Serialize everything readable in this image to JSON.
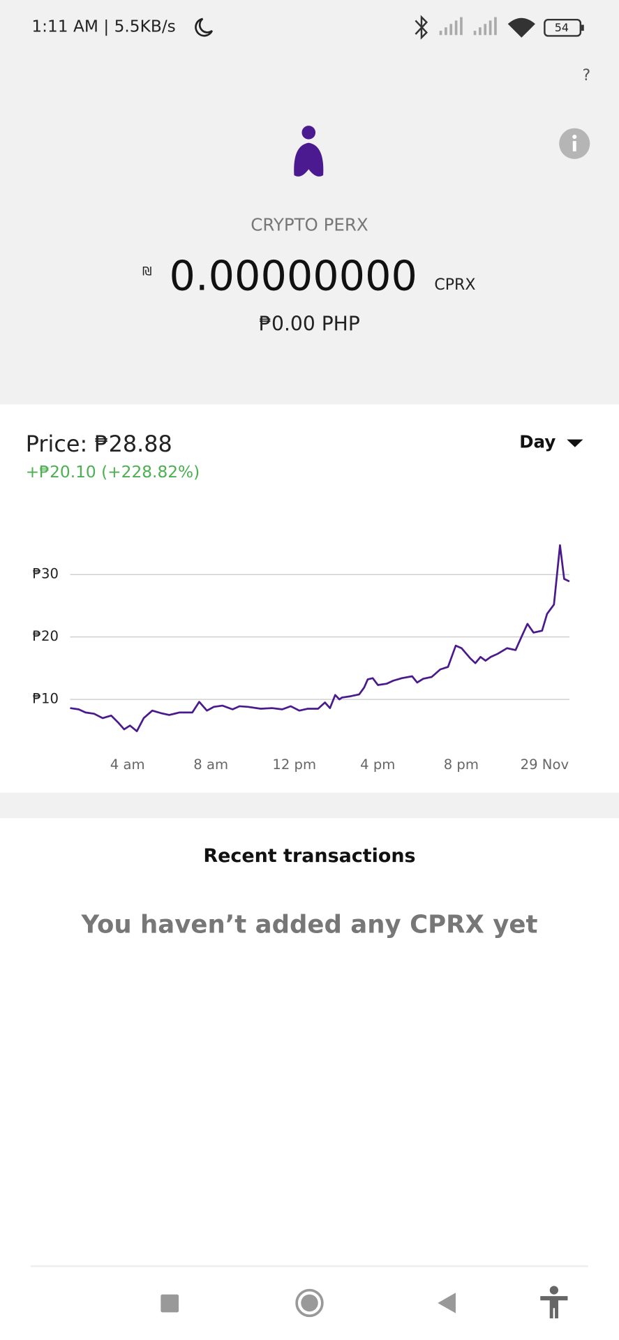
{
  "status_bar": {
    "time": "1:11 AM | 5.5KB/s",
    "battery": "54"
  },
  "header": {
    "help": "?",
    "name": "CRYPTO PERX",
    "currency_symbol": "₪",
    "balance": "0.00000000",
    "unit": "CPRX",
    "fiat": "₱0.00 PHP"
  },
  "price": {
    "label": "Price: ₱28.88",
    "change": "+₱20.10 (+228.82%)",
    "period": "Day"
  },
  "chart_data": {
    "type": "line",
    "color": "#4a1a8c",
    "grid": true,
    "x": [
      1.25,
      1.66,
      1.99,
      2.4,
      2.81,
      3.22,
      3.55,
      3.84,
      4.12,
      4.45,
      4.78,
      5.19,
      5.6,
      6.0,
      6.5,
      7.11,
      7.44,
      7.81,
      8.14,
      8.55,
      9.04,
      9.37,
      9.78,
      10.39,
      10.93,
      11.42,
      11.83,
      12.24,
      12.65,
      13.14,
      13.47,
      13.71,
      13.96,
      14.16,
      14.29,
      14.7,
      15.11,
      15.35,
      15.52,
      15.76,
      16.01,
      16.42,
      16.75,
      17.16,
      17.65,
      17.89,
      18.18,
      18.59,
      19.0,
      19.37,
      19.74,
      20.02,
      20.43,
      20.68,
      20.93,
      21.17,
      21.42,
      21.75,
      22.2,
      22.61,
      22.89,
      23.18,
      23.47,
      23.88,
      24.12,
      24.45,
      24.74,
      24.94,
      25.19
    ],
    "values": [
      8.6,
      8.4,
      7.9,
      7.7,
      7.0,
      7.4,
      6.3,
      5.2,
      5.8,
      4.9,
      7.0,
      8.2,
      7.8,
      7.5,
      7.9,
      7.9,
      9.6,
      8.2,
      8.8,
      9.0,
      8.4,
      8.9,
      8.8,
      8.5,
      8.6,
      8.4,
      8.9,
      8.2,
      8.5,
      8.5,
      9.5,
      8.6,
      10.7,
      10.0,
      10.3,
      10.5,
      10.8,
      11.9,
      13.2,
      13.4,
      12.3,
      12.5,
      13.0,
      13.4,
      13.7,
      12.7,
      13.3,
      13.6,
      14.8,
      15.2,
      18.6,
      18.2,
      16.6,
      15.8,
      16.8,
      16.2,
      16.8,
      17.3,
      18.2,
      17.9,
      20.0,
      22.1,
      20.7,
      21.0,
      23.7,
      25.2,
      34.7,
      29.3,
      28.9
    ],
    "xlim": [
      1.25,
      25.19
    ],
    "xticks": [
      {
        "value": 4,
        "label": "4 am"
      },
      {
        "value": 8,
        "label": "8 am"
      },
      {
        "value": 12,
        "label": "12 pm"
      },
      {
        "value": 16,
        "label": "4 pm"
      },
      {
        "value": 20,
        "label": "8 pm"
      },
      {
        "value": 24,
        "label": "29 Nov"
      }
    ],
    "ylim": [
      4,
      36
    ],
    "yticks": [
      {
        "value": 10,
        "label": "₱10"
      },
      {
        "value": 20,
        "label": "₱20"
      },
      {
        "value": 30,
        "label": "₱30"
      }
    ]
  },
  "transactions": {
    "title": "Recent transactions",
    "empty": "You haven’t added any CPRX yet"
  }
}
